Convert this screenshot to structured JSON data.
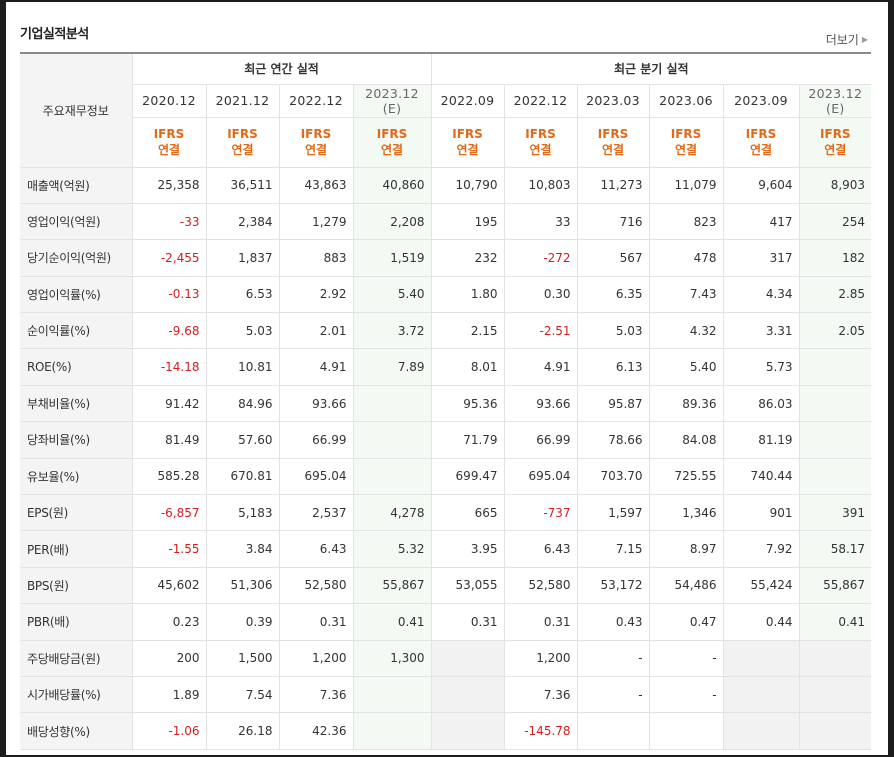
{
  "title": "기업실적분석",
  "more_label": "더보기",
  "header": {
    "row_label": "주요재무정보",
    "annual_group": "최근 연간 실적",
    "quarter_group": "최근 분기 실적",
    "ifrs_top": "IFRS",
    "ifrs_bottom": "연결",
    "annual_periods": [
      "2020.12",
      "2021.12",
      "2022.12",
      "2023.12"
    ],
    "annual_est_suffix": "(E)",
    "quarter_periods": [
      "2022.09",
      "2022.12",
      "2023.03",
      "2023.06",
      "2023.09",
      "2023.12"
    ],
    "quarter_est_suffix": "(E)"
  },
  "rows": [
    {
      "label": "매출액(억원)",
      "values": [
        "25,358",
        "36,511",
        "43,863",
        "40,860",
        "10,790",
        "10,803",
        "11,273",
        "11,079",
        "9,604",
        "8,903"
      ]
    },
    {
      "label": "영업이익(억원)",
      "values": [
        "-33",
        "2,384",
        "1,279",
        "2,208",
        "195",
        "33",
        "716",
        "823",
        "417",
        "254"
      ]
    },
    {
      "label": "당기순이익(억원)",
      "values": [
        "-2,455",
        "1,837",
        "883",
        "1,519",
        "232",
        "-272",
        "567",
        "478",
        "317",
        "182"
      ]
    },
    {
      "label": "영업이익률(%)",
      "values": [
        "-0.13",
        "6.53",
        "2.92",
        "5.40",
        "1.80",
        "0.30",
        "6.35",
        "7.43",
        "4.34",
        "2.85"
      ]
    },
    {
      "label": "순이익률(%)",
      "values": [
        "-9.68",
        "5.03",
        "2.01",
        "3.72",
        "2.15",
        "-2.51",
        "5.03",
        "4.32",
        "3.31",
        "2.05"
      ]
    },
    {
      "label": "ROE(%)",
      "values": [
        "-14.18",
        "10.81",
        "4.91",
        "7.89",
        "8.01",
        "4.91",
        "6.13",
        "5.40",
        "5.73",
        ""
      ]
    },
    {
      "label": "부채비율(%)",
      "values": [
        "91.42",
        "84.96",
        "93.66",
        "",
        "95.36",
        "93.66",
        "95.87",
        "89.36",
        "86.03",
        ""
      ]
    },
    {
      "label": "당좌비율(%)",
      "values": [
        "81.49",
        "57.60",
        "66.99",
        "",
        "71.79",
        "66.99",
        "78.66",
        "84.08",
        "81.19",
        ""
      ]
    },
    {
      "label": "유보율(%)",
      "values": [
        "585.28",
        "670.81",
        "695.04",
        "",
        "699.47",
        "695.04",
        "703.70",
        "725.55",
        "740.44",
        ""
      ]
    },
    {
      "label": "EPS(원)",
      "values": [
        "-6,857",
        "5,183",
        "2,537",
        "4,278",
        "665",
        "-737",
        "1,597",
        "1,346",
        "901",
        "391"
      ]
    },
    {
      "label": "PER(배)",
      "values": [
        "-1.55",
        "3.84",
        "6.43",
        "5.32",
        "3.95",
        "6.43",
        "7.15",
        "8.97",
        "7.92",
        "58.17"
      ]
    },
    {
      "label": "BPS(원)",
      "values": [
        "45,602",
        "51,306",
        "52,580",
        "55,867",
        "53,055",
        "52,580",
        "53,172",
        "54,486",
        "55,424",
        "55,867"
      ]
    },
    {
      "label": "PBR(배)",
      "values": [
        "0.23",
        "0.39",
        "0.31",
        "0.41",
        "0.31",
        "0.31",
        "0.43",
        "0.47",
        "0.44",
        "0.41"
      ]
    },
    {
      "label": "주당배당금(원)",
      "values": [
        "200",
        "1,500",
        "1,200",
        "1,300",
        "",
        "1,200",
        "-",
        "-",
        "",
        ""
      ]
    },
    {
      "label": "시가배당률(%)",
      "values": [
        "1.89",
        "7.54",
        "7.36",
        "",
        "",
        "7.36",
        "-",
        "-",
        "",
        ""
      ]
    },
    {
      "label": "배당성향(%)",
      "values": [
        "-1.06",
        "26.18",
        "42.36",
        "",
        "",
        "-145.78",
        "",
        "",
        "",
        ""
      ]
    }
  ],
  "grey_cells": [
    [
      13,
      4
    ],
    [
      13,
      8
    ],
    [
      13,
      9
    ],
    [
      14,
      4
    ],
    [
      14,
      8
    ],
    [
      14,
      9
    ],
    [
      15,
      4
    ],
    [
      15,
      8
    ],
    [
      15,
      9
    ]
  ],
  "group_starts": [
    3,
    6,
    9,
    13
  ],
  "colors": {
    "negative": "#d01f1f",
    "ifrs": "#e06a1a",
    "estimate_bg": "#f3f9f3",
    "label_bg": "#f4f4f4"
  }
}
